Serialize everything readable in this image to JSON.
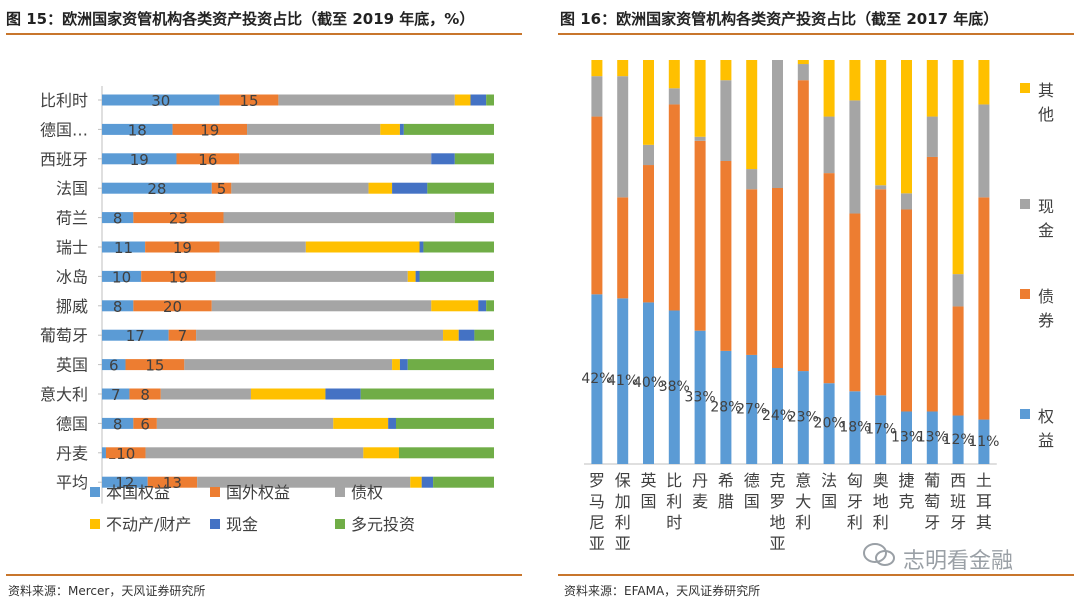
{
  "left": {
    "title": "图 15：欧洲国家资管机构各类资产投资占比（截至 2019 年底，%）",
    "source": "资料来源：Mercer，天风证券研究所"
  },
  "right": {
    "title": "图 16：欧洲国家资管机构各类资产投资占比（截至 2017 年底）",
    "source": "资料来源：EFAMA，天风证券研究所"
  },
  "watermark": "志明看金融",
  "chart_data": [
    {
      "type": "bar",
      "orientation": "horizontal",
      "stacked": true,
      "percent": true,
      "categories": [
        "比利时",
        "德国…",
        "西班牙",
        "法国",
        "荷兰",
        "瑞士",
        "冰岛",
        "挪威",
        "葡萄牙",
        "英国",
        "意大利",
        "德国",
        "丹麦",
        "平均"
      ],
      "series": [
        {
          "name": "本国权益",
          "color": "#5b9bd5",
          "values": [
            30,
            18,
            19,
            28,
            8,
            11,
            10,
            8,
            17,
            6,
            7,
            8,
            1,
            12
          ],
          "labels": [
            "30",
            "18",
            "19",
            "28",
            "8",
            "11",
            "10",
            "8",
            "17",
            "6",
            "7",
            "8",
            "1",
            "12"
          ]
        },
        {
          "name": "国外权益",
          "color": "#ed7d31",
          "values": [
            15,
            19,
            16,
            5,
            23,
            19,
            19,
            20,
            7,
            15,
            8,
            6,
            10,
            13
          ],
          "labels": [
            "15",
            "19",
            "16",
            "5",
            "23",
            "19",
            "19",
            "20",
            "7",
            "15",
            "8",
            "6",
            "10",
            "13"
          ]
        },
        {
          "name": "债权",
          "color": "#a5a5a5",
          "values": [
            45,
            34,
            49,
            35,
            59,
            22,
            49,
            56,
            63,
            53,
            23,
            45,
            55,
            56
          ],
          "labels": []
        },
        {
          "name": "不动产/财产",
          "color": "#ffc000",
          "values": [
            4,
            5,
            0,
            6,
            0,
            29,
            2,
            12,
            4,
            2,
            19,
            14,
            9,
            3
          ],
          "labels": []
        },
        {
          "name": "现金",
          "color": "#4472c4",
          "values": [
            4,
            1,
            6,
            9,
            0,
            1,
            1,
            2,
            4,
            2,
            9,
            2,
            0,
            3
          ],
          "labels": []
        },
        {
          "name": "多元投资",
          "color": "#70ad47",
          "values": [
            2,
            23,
            10,
            17,
            10,
            18,
            19,
            2,
            5,
            22,
            34,
            25,
            24,
            16
          ],
          "labels": []
        }
      ],
      "legend_position": "bottom",
      "xlim": [
        0,
        100
      ],
      "grid": false
    },
    {
      "type": "bar",
      "orientation": "vertical",
      "stacked": true,
      "percent": true,
      "categories": [
        "罗马尼亚",
        "保加利亚",
        "英国",
        "比利时",
        "丹麦",
        "希腊",
        "德国",
        "克罗地亚",
        "意大利",
        "法国",
        "匈牙利",
        "奥地利",
        "捷克",
        "葡萄牙",
        "西班牙",
        "土耳其"
      ],
      "series": [
        {
          "name": "权益",
          "color": "#5b9bd5",
          "values": [
            42,
            41,
            40,
            38,
            33,
            28,
            27,
            24,
            23,
            20,
            18,
            17,
            13,
            13,
            12,
            11
          ],
          "labels": [
            "42%",
            "41%",
            "40%",
            "38%",
            "33%",
            "28%",
            "27%",
            "24%",
            "23%",
            "20%",
            "18%",
            "17%",
            "13%",
            "13%",
            "12%",
            "11%"
          ]
        },
        {
          "name": "债券",
          "color": "#ed7d31",
          "values": [
            44,
            25,
            34,
            51,
            47,
            47,
            41,
            45,
            72,
            52,
            44,
            51,
            50,
            63,
            27,
            55
          ],
          "labels": []
        },
        {
          "name": "现金",
          "color": "#a5a5a5",
          "values": [
            10,
            30,
            5,
            4,
            1,
            20,
            5,
            32,
            4,
            14,
            28,
            1,
            4,
            10,
            8,
            23
          ],
          "labels": []
        },
        {
          "name": "其他",
          "color": "#ffc000",
          "values": [
            4,
            4,
            21,
            7,
            19,
            5,
            27,
            0,
            1,
            14,
            10,
            31,
            33,
            14,
            53,
            11
          ],
          "labels": []
        }
      ],
      "legend_position": "right",
      "ylim": [
        0,
        100
      ],
      "grid": false
    }
  ]
}
